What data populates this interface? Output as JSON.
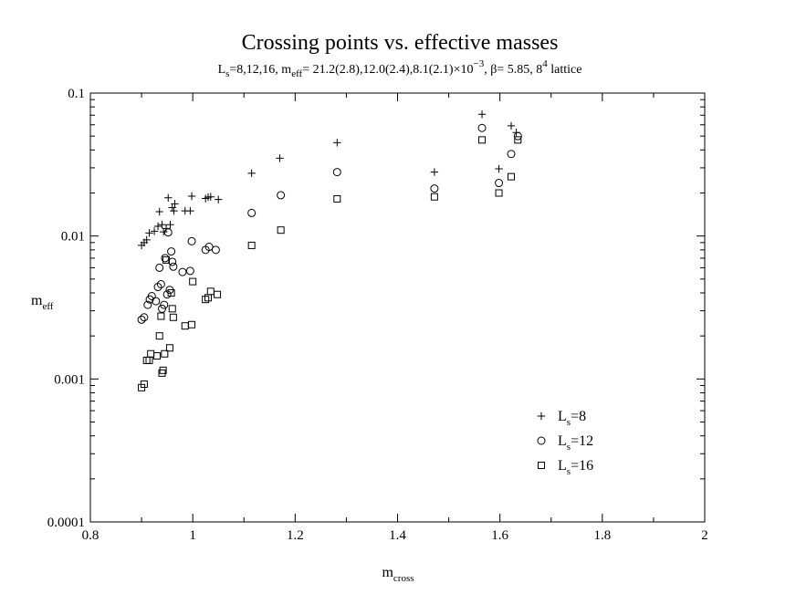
{
  "chart_data": {
    "type": "scatter",
    "title": "Crossing points vs. effective masses",
    "subtitle": {
      "ls_prefix": "L",
      "ls_sub": "s",
      "ls_values": "=8,12,16, m",
      "meff_sub": "eff",
      "meff_values": "= 21.2(2.8),12.0(2.4),8.1(2.1)×10",
      "exp": "−3",
      "rest": ", β= 5.85, 8",
      "lattice_exp": "4",
      "lattice": " lattice"
    },
    "xlabel": {
      "base": "m",
      "sub": "cross"
    },
    "ylabel": {
      "base": "m",
      "sub": "eff"
    },
    "xlim": [
      0.8,
      2.0
    ],
    "ylim": [
      0.0001,
      0.1
    ],
    "yscale": "log",
    "x_ticks": [
      "0.8",
      "1",
      "1.2",
      "1.4",
      "1.6",
      "1.8",
      "2"
    ],
    "y_ticks": [
      "0.0001",
      "0.001",
      "0.01",
      "0.1"
    ],
    "legend_position": "bottom-right",
    "series": [
      {
        "name": "Ls=8",
        "label_base": "L",
        "label_sub": "s",
        "label_rest": "=8",
        "marker": "plus",
        "points": [
          [
            0.9,
            0.0086
          ],
          [
            0.905,
            0.009
          ],
          [
            0.91,
            0.0094
          ],
          [
            0.915,
            0.0105
          ],
          [
            0.925,
            0.0108
          ],
          [
            0.932,
            0.0117
          ],
          [
            0.935,
            0.0148
          ],
          [
            0.94,
            0.012
          ],
          [
            0.943,
            0.0107
          ],
          [
            0.948,
            0.0113
          ],
          [
            0.952,
            0.0185
          ],
          [
            0.956,
            0.012
          ],
          [
            0.96,
            0.0158
          ],
          [
            0.963,
            0.015
          ],
          [
            0.965,
            0.0168
          ],
          [
            0.985,
            0.015
          ],
          [
            0.995,
            0.015
          ],
          [
            0.998,
            0.019
          ],
          [
            1.025,
            0.0183
          ],
          [
            1.03,
            0.0187
          ],
          [
            1.035,
            0.0188
          ],
          [
            1.05,
            0.018
          ],
          [
            1.115,
            0.0275
          ],
          [
            1.17,
            0.035
          ],
          [
            1.282,
            0.045
          ],
          [
            1.472,
            0.028
          ],
          [
            1.565,
            0.071
          ],
          [
            1.598,
            0.0295
          ],
          [
            1.622,
            0.059
          ],
          [
            1.632,
            0.053
          ]
        ]
      },
      {
        "name": "Ls=12",
        "label_base": "L",
        "label_sub": "s",
        "label_rest": "=12",
        "marker": "circle",
        "points": [
          [
            0.9,
            0.0026
          ],
          [
            0.905,
            0.0027
          ],
          [
            0.912,
            0.0033
          ],
          [
            0.916,
            0.0036
          ],
          [
            0.92,
            0.0038
          ],
          [
            0.928,
            0.0035
          ],
          [
            0.932,
            0.0044
          ],
          [
            0.935,
            0.006
          ],
          [
            0.938,
            0.0046
          ],
          [
            0.94,
            0.0031
          ],
          [
            0.944,
            0.0033
          ],
          [
            0.946,
            0.007
          ],
          [
            0.95,
            0.0039
          ],
          [
            0.952,
            0.0106
          ],
          [
            0.955,
            0.0042
          ],
          [
            0.958,
            0.0078
          ],
          [
            0.96,
            0.0066
          ],
          [
            0.962,
            0.0061
          ],
          [
            0.98,
            0.0056
          ],
          [
            0.995,
            0.0057
          ],
          [
            0.998,
            0.0092
          ],
          [
            1.025,
            0.008
          ],
          [
            1.032,
            0.0084
          ],
          [
            1.045,
            0.008
          ],
          [
            1.115,
            0.0145
          ],
          [
            1.172,
            0.0193
          ],
          [
            1.282,
            0.028
          ],
          [
            1.472,
            0.0215
          ],
          [
            1.565,
            0.057
          ],
          [
            1.598,
            0.0235
          ],
          [
            1.622,
            0.0375
          ],
          [
            1.635,
            0.05
          ]
        ]
      },
      {
        "name": "Ls=16",
        "label_base": "L",
        "label_sub": "s",
        "label_rest": "=16",
        "marker": "square",
        "points": [
          [
            0.9,
            0.00087
          ],
          [
            0.905,
            0.00092
          ],
          [
            0.91,
            0.00135
          ],
          [
            0.915,
            0.00135
          ],
          [
            0.918,
            0.0015
          ],
          [
            0.93,
            0.00145
          ],
          [
            0.935,
            0.002
          ],
          [
            0.938,
            0.00275
          ],
          [
            0.94,
            0.0011
          ],
          [
            0.942,
            0.00115
          ],
          [
            0.945,
            0.0015
          ],
          [
            0.948,
            0.0068
          ],
          [
            0.955,
            0.00165
          ],
          [
            0.958,
            0.004
          ],
          [
            0.96,
            0.0031
          ],
          [
            0.962,
            0.0027
          ],
          [
            0.985,
            0.00235
          ],
          [
            0.998,
            0.0024
          ],
          [
            1.0,
            0.0048
          ],
          [
            1.025,
            0.0036
          ],
          [
            1.03,
            0.0037
          ],
          [
            1.035,
            0.0041
          ],
          [
            1.048,
            0.0039
          ],
          [
            1.115,
            0.0086
          ],
          [
            1.172,
            0.011
          ],
          [
            1.282,
            0.0182
          ],
          [
            1.472,
            0.0188
          ],
          [
            1.565,
            0.047
          ],
          [
            1.598,
            0.02
          ],
          [
            1.622,
            0.026
          ],
          [
            1.635,
            0.047
          ]
        ]
      }
    ]
  }
}
